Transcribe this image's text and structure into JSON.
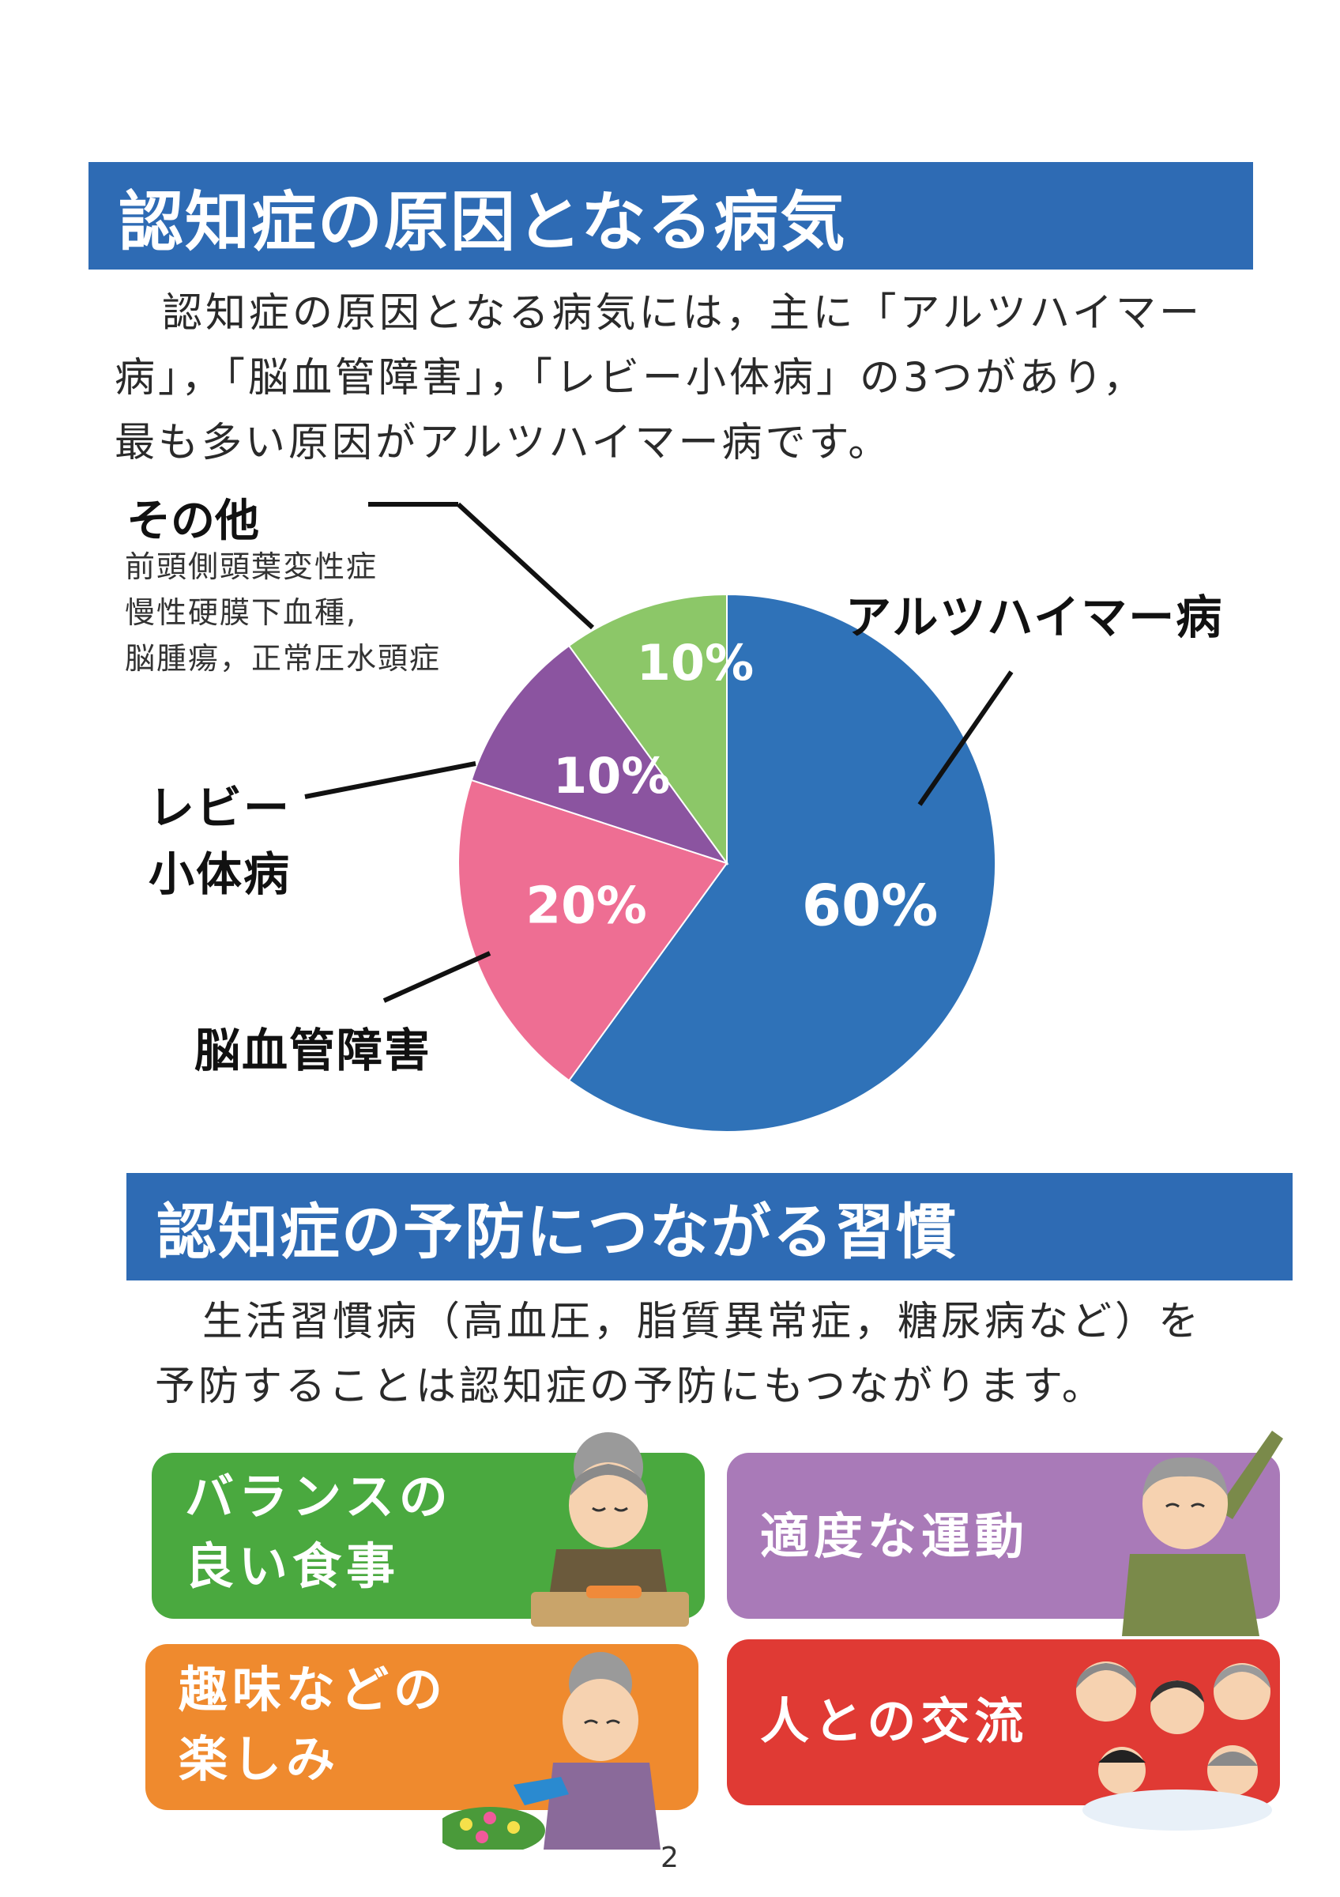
{
  "section1": {
    "heading": "認知症の原因となる病気",
    "paragraph_lines": [
      "認知症の原因となる病気には，主に「アルツハイマー",
      "病」，「脳血管障害」，「レビー小体病」の3つがあり，",
      "最も多い原因がアルツハイマー病です。"
    ]
  },
  "chart_data": {
    "type": "pie",
    "slices": [
      {
        "label": "アルツハイマー病",
        "value": 60,
        "value_label": "60%",
        "color": "#2f72b8"
      },
      {
        "label": "脳血管障害",
        "value": 20,
        "value_label": "20%",
        "color": "#ee6e93"
      },
      {
        "label": "レビー小体病",
        "label_lines": [
          "レビー",
          "小体病"
        ],
        "value": 10,
        "value_label": "10%",
        "color": "#8b54a0"
      },
      {
        "label": "その他",
        "value": 10,
        "value_label": "10%",
        "color": "#8cc768",
        "detail_lines": [
          "前頭側頭葉変性症",
          "慢性硬膜下血種,",
          "脳腫瘍，正常圧水頭症"
        ]
      }
    ]
  },
  "section2": {
    "heading": "認知症の予防につながる習慣",
    "paragraph_lines": [
      "生活習慣病（高血圧，脂質異常症，糖尿病など）を",
      "予防することは認知症の予防にもつながります。"
    ]
  },
  "cards": [
    {
      "lines": [
        "バランスの",
        "良い食事"
      ],
      "color": "#4aa93f"
    },
    {
      "lines": [
        "適度な運動"
      ],
      "color": "#a97ab8"
    },
    {
      "lines": [
        "趣味などの",
        "楽しみ"
      ],
      "color": "#ef8a2e"
    },
    {
      "lines": [
        "人との交流"
      ],
      "color": "#e03a34"
    }
  ],
  "page_number": "2"
}
